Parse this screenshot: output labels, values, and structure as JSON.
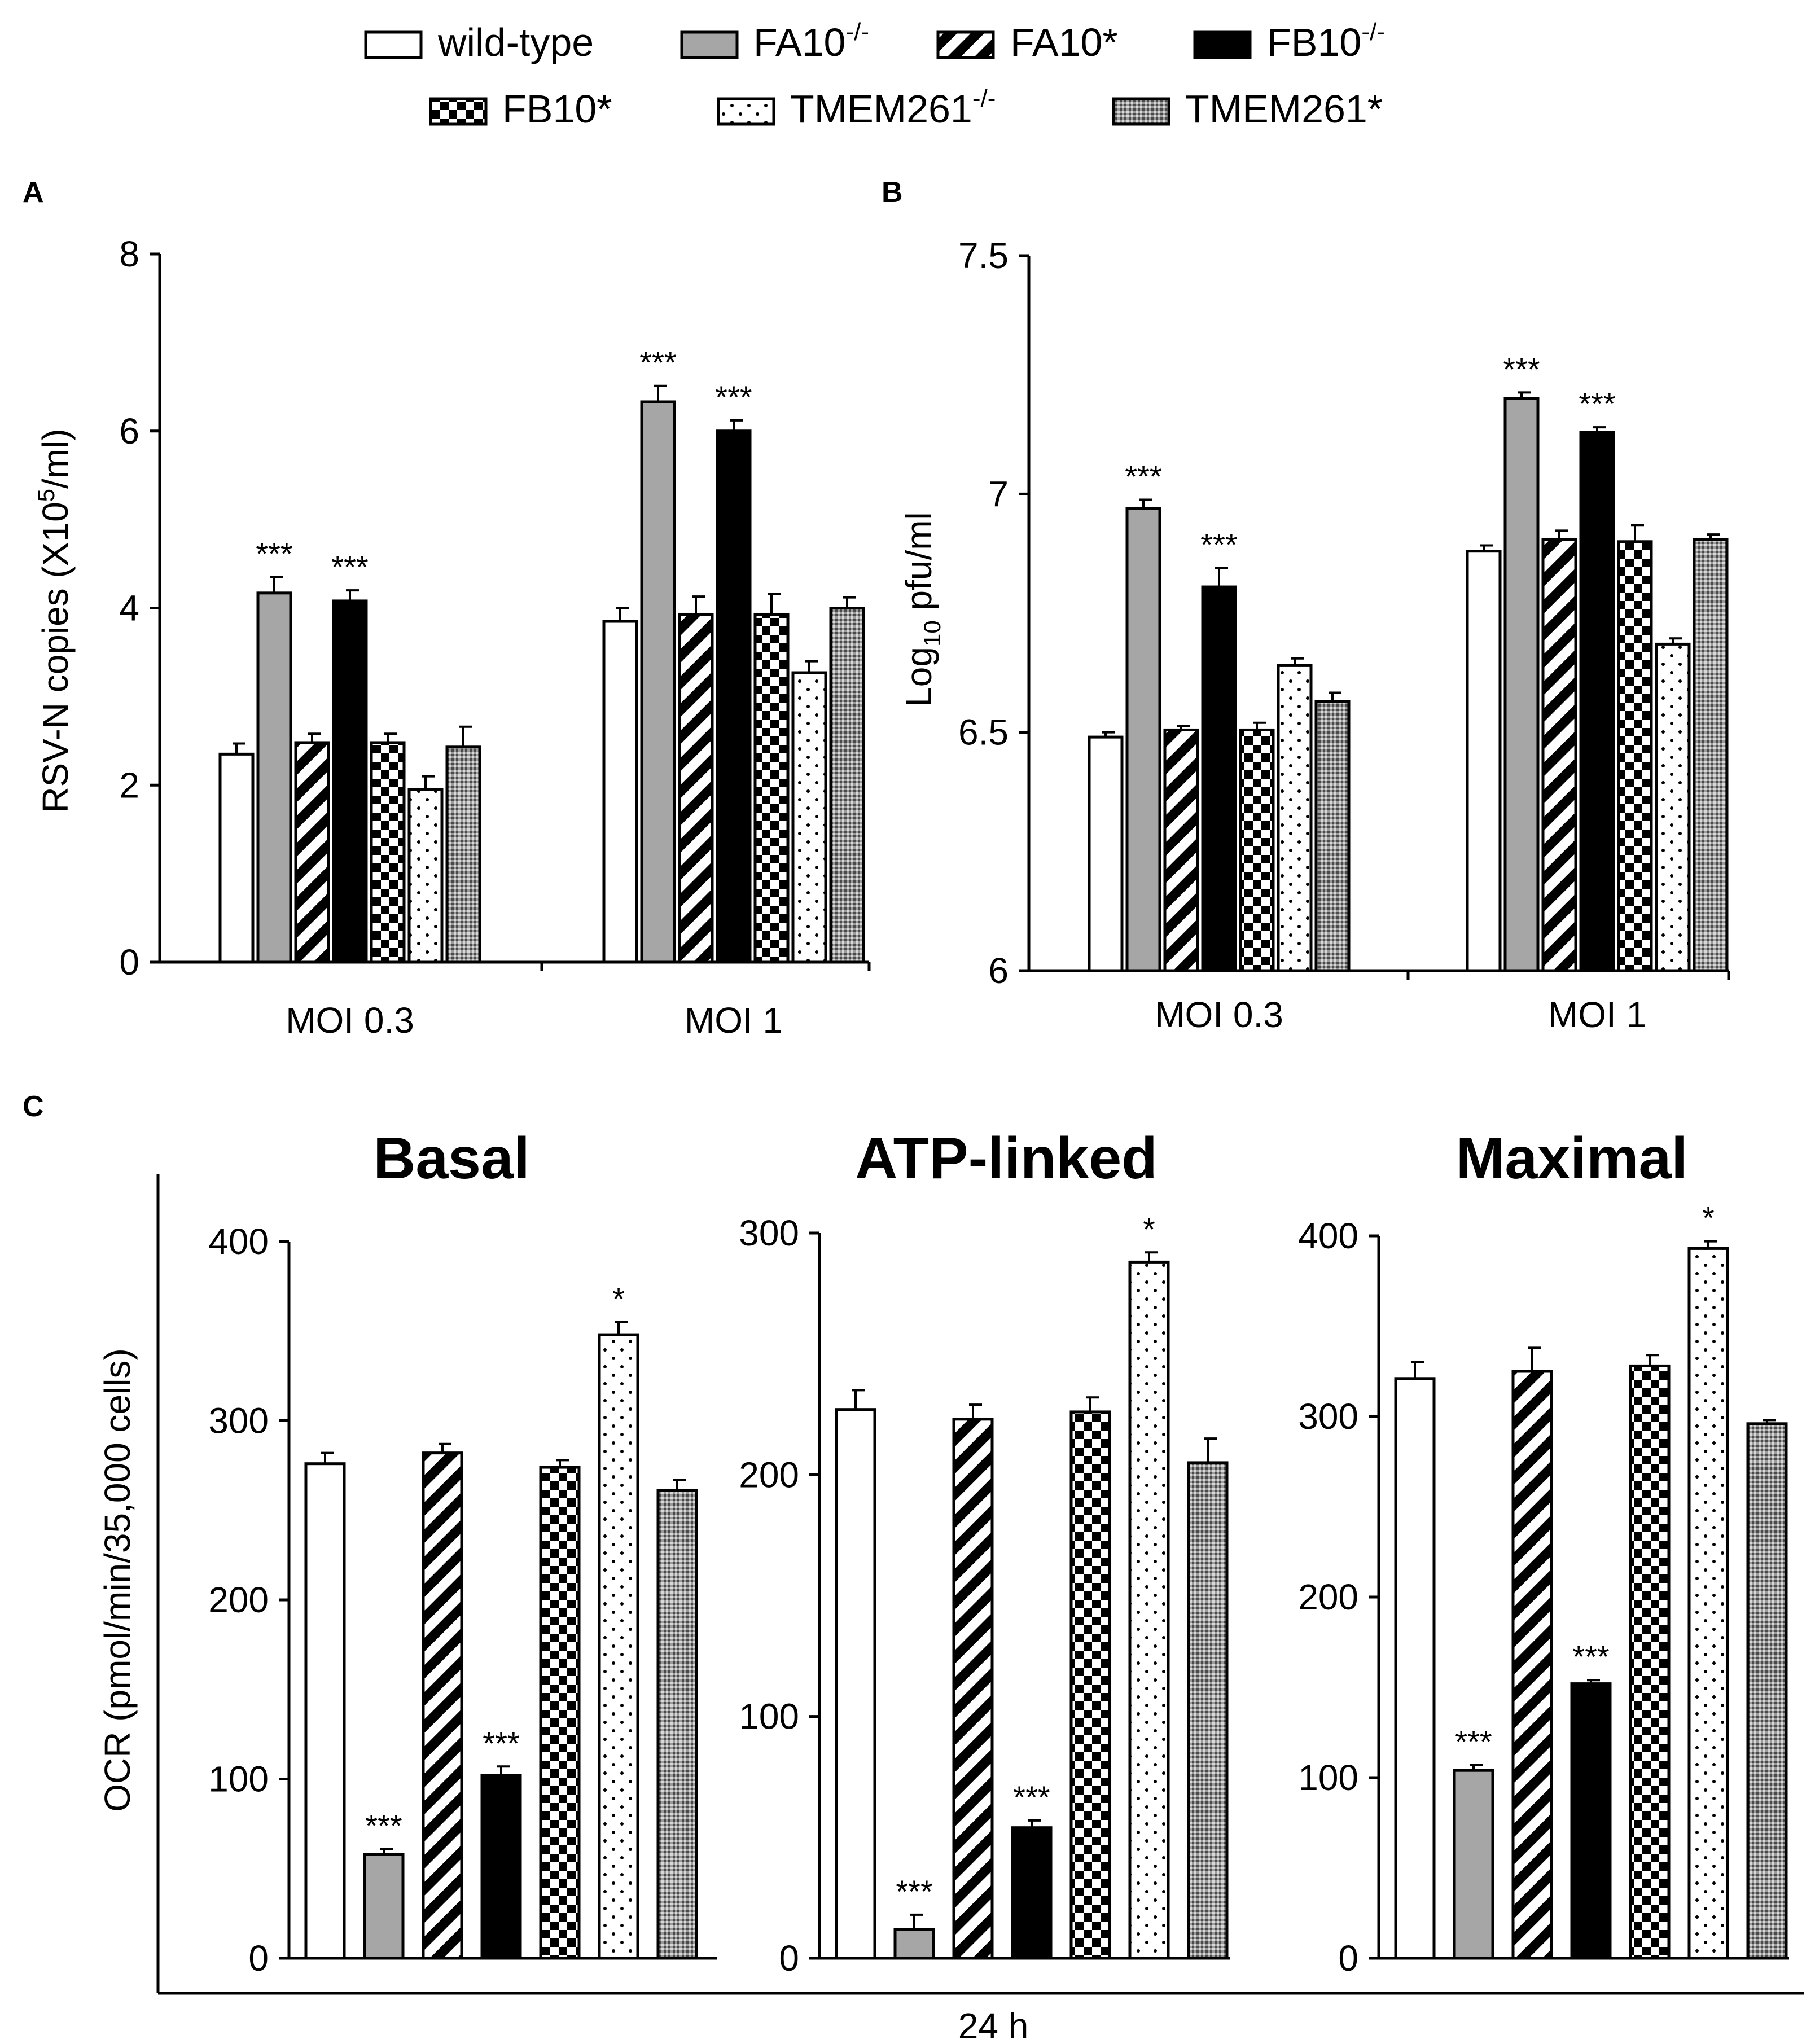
{
  "legend": {
    "items": [
      {
        "label": "wild-type",
        "sup": "",
        "pattern": "white"
      },
      {
        "label": "FA10",
        "sup": "-/-",
        "pattern": "gray"
      },
      {
        "label": "FA10*",
        "sup": "",
        "pattern": "diag"
      },
      {
        "label": "FB10",
        "sup": "-/-",
        "pattern": "black"
      },
      {
        "label": "FB10*",
        "sup": "",
        "pattern": "checker"
      },
      {
        "label": "TMEM261",
        "sup": "-/-",
        "pattern": "dots"
      },
      {
        "label": "TMEM261*",
        "sup": "",
        "pattern": "stipple"
      }
    ]
  },
  "panel_labels": [
    "A",
    "B",
    "C"
  ],
  "colors": {
    "gray_fill": "#a6a6a6",
    "black_fill": "#000000",
    "axis": "#000000"
  },
  "chart_data": [
    {
      "id": "A",
      "type": "bar",
      "ylabel": "RSV-N copies (X10⁵/ml)",
      "ylabel_parts": {
        "pre": "RSV-N copies (X10",
        "sup": "5",
        "post": "/ml)"
      },
      "ylim": [
        0,
        8
      ],
      "yticks": [
        "0",
        "2",
        "4",
        "6",
        "8"
      ],
      "categories": [
        "MOI 0.3",
        "MOI 1"
      ],
      "series": [
        {
          "name": "wild-type",
          "values": [
            2.35,
            3.85
          ],
          "err": [
            0.12,
            0.15
          ],
          "sig": [
            "",
            ""
          ]
        },
        {
          "name": "FA10-/-",
          "values": [
            4.17,
            6.33
          ],
          "err": [
            0.18,
            0.18
          ],
          "sig": [
            "***",
            "***"
          ]
        },
        {
          "name": "FA10*",
          "values": [
            2.48,
            3.93
          ],
          "err": [
            0.1,
            0.2
          ],
          "sig": [
            "",
            ""
          ]
        },
        {
          "name": "FB10-/-",
          "values": [
            4.08,
            6.0
          ],
          "err": [
            0.12,
            0.12
          ],
          "sig": [
            "***",
            "***"
          ]
        },
        {
          "name": "FB10*",
          "values": [
            2.48,
            3.93
          ],
          "err": [
            0.1,
            0.23
          ],
          "sig": [
            "",
            ""
          ]
        },
        {
          "name": "TMEM261-/-",
          "values": [
            1.95,
            3.27
          ],
          "err": [
            0.15,
            0.13
          ],
          "sig": [
            "",
            ""
          ]
        },
        {
          "name": "TMEM261*",
          "values": [
            2.43,
            4.0
          ],
          "err": [
            0.23,
            0.12
          ],
          "sig": [
            "",
            ""
          ]
        }
      ]
    },
    {
      "id": "B",
      "type": "bar",
      "ylabel": "Log10 pfu/ml",
      "ylabel_parts": {
        "pre": "Log",
        "sub": "10",
        "post": " pfu/ml"
      },
      "ylim": [
        6,
        7.5
      ],
      "yticks": [
        "6",
        "6.5",
        "7",
        "7.5"
      ],
      "categories": [
        "MOI 0.3",
        "MOI 1"
      ],
      "series": [
        {
          "name": "wild-type",
          "values": [
            6.49,
            6.88
          ],
          "err": [
            0.01,
            0.012
          ],
          "sig": [
            "",
            ""
          ]
        },
        {
          "name": "FA10-/-",
          "values": [
            6.97,
            7.2
          ],
          "err": [
            0.018,
            0.013
          ],
          "sig": [
            "***",
            "***"
          ]
        },
        {
          "name": "FA10*",
          "values": [
            6.505,
            6.905
          ],
          "err": [
            0.008,
            0.018
          ],
          "sig": [
            "",
            ""
          ]
        },
        {
          "name": "FB10-/-",
          "values": [
            6.805,
            7.13
          ],
          "err": [
            0.04,
            0.01
          ],
          "sig": [
            "***",
            "***"
          ]
        },
        {
          "name": "FB10*",
          "values": [
            6.505,
            6.9
          ],
          "err": [
            0.015,
            0.035
          ],
          "sig": [
            "",
            ""
          ]
        },
        {
          "name": "TMEM261-/-",
          "values": [
            6.64,
            6.685
          ],
          "err": [
            0.015,
            0.012
          ],
          "sig": [
            "",
            ""
          ]
        },
        {
          "name": "TMEM261*",
          "values": [
            6.565,
            6.905
          ],
          "err": [
            0.018,
            0.01
          ],
          "sig": [
            "",
            ""
          ]
        }
      ]
    },
    {
      "id": "C-basal",
      "type": "bar",
      "title": "Basal",
      "ylabel": "OCR (pmol/min/35,000 cells)",
      "ylim": [
        0,
        400
      ],
      "yticks": [
        "0",
        "100",
        "200",
        "300",
        "400"
      ],
      "categories": [
        "wild-type",
        "FA10-/-",
        "FA10*",
        "FB10-/-",
        "FB10*",
        "TMEM261-/-",
        "TMEM261*"
      ],
      "values": [
        276,
        58,
        282,
        102,
        274,
        348,
        261
      ],
      "err": [
        6,
        3,
        5,
        5,
        4,
        7,
        6
      ],
      "sig": [
        "",
        "***",
        "",
        "***",
        "",
        "*",
        ""
      ]
    },
    {
      "id": "C-atp",
      "type": "bar",
      "title": "ATP-linked",
      "ylim": [
        0,
        300
      ],
      "yticks": [
        "0",
        "100",
        "200",
        "300"
      ],
      "categories": [
        "wild-type",
        "FA10-/-",
        "FA10*",
        "FB10-/-",
        "FB10*",
        "TMEM261-/-",
        "TMEM261*"
      ],
      "values": [
        227,
        12,
        223,
        54,
        226,
        288,
        205
      ],
      "err": [
        8,
        6,
        6,
        3,
        6,
        4,
        10
      ],
      "sig": [
        "",
        "***",
        "",
        "***",
        "",
        "*",
        ""
      ]
    },
    {
      "id": "C-maximal",
      "type": "bar",
      "title": "Maximal",
      "ylim": [
        0,
        400
      ],
      "yticks": [
        "0",
        "100",
        "200",
        "300",
        "400"
      ],
      "categories": [
        "wild-type",
        "FA10-/-",
        "FA10*",
        "FB10-/-",
        "FB10*",
        "TMEM261-/-",
        "TMEM261*"
      ],
      "values": [
        321,
        104,
        325,
        152,
        328,
        393,
        296
      ],
      "err": [
        9,
        3,
        13,
        2,
        6,
        4,
        2
      ],
      "sig": [
        "",
        "***",
        "",
        "***",
        "",
        "*",
        ""
      ]
    }
  ],
  "c_xlabel": "24 h"
}
